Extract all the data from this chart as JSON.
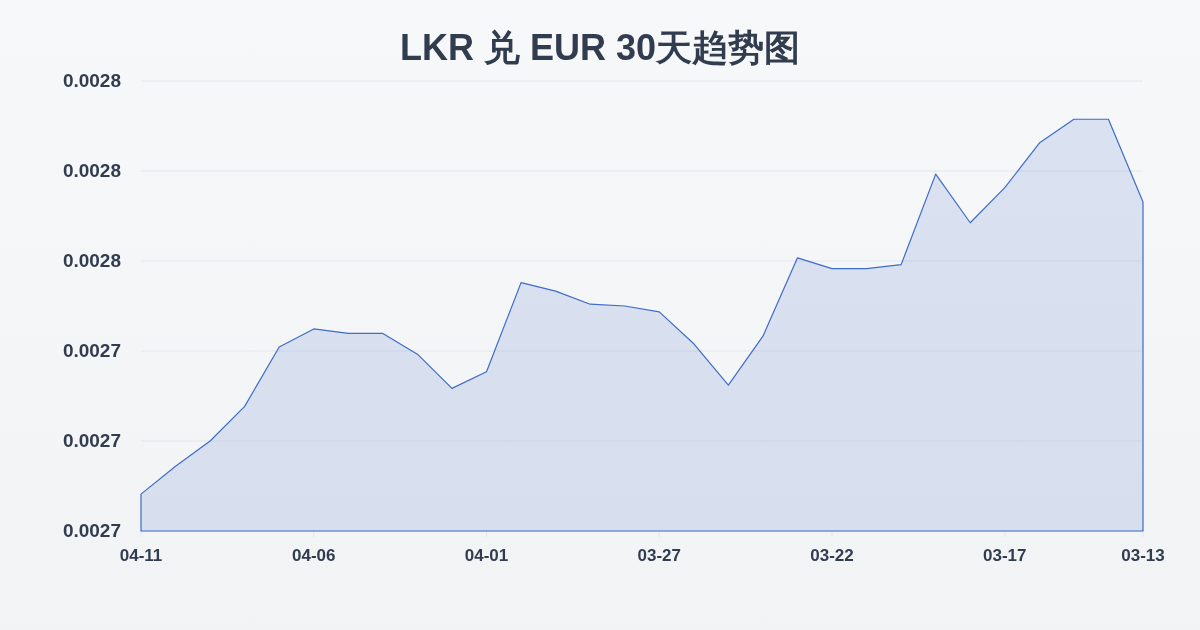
{
  "chart_data": {
    "type": "area",
    "title": "LKR 兑 EUR 30天趋势图",
    "categories": [
      "04-11",
      null,
      null,
      null,
      null,
      "04-06",
      null,
      null,
      null,
      null,
      "04-01",
      null,
      null,
      null,
      null,
      "03-27",
      null,
      null,
      null,
      null,
      "03-22",
      null,
      null,
      null,
      null,
      "03-17",
      null,
      null,
      null,
      "03-13"
    ],
    "values": [
      0.0027082,
      0.0027144,
      0.00272,
      0.0027277,
      0.0027409,
      0.0027449,
      0.0027439,
      0.0027439,
      0.0027393,
      0.0027317,
      0.0027354,
      0.0027552,
      0.0027533,
      0.0027504,
      0.00275,
      0.0027487,
      0.0027416,
      0.0027324,
      0.0027433,
      0.0027607,
      0.0027583,
      0.0027583,
      0.0027592,
      0.0027793,
      0.0027685,
      0.0027763,
      0.0027862,
      0.0027915,
      0.0027915,
      0.0027731
    ],
    "color": "#3d6cc9",
    "ylim": [
      0.0027,
      0.0028
    ],
    "yticks": [
      0.0027,
      {
        "value": 0.00272,
        "label": "0.0027"
      },
      {
        "value": 0.00274,
        "label": "0.0027"
      },
      {
        "value": 0.00276,
        "label": "0.0028"
      },
      {
        "value": 0.00278,
        "label": "0.0028"
      },
      0.0028
    ],
    "grid": "y"
  }
}
